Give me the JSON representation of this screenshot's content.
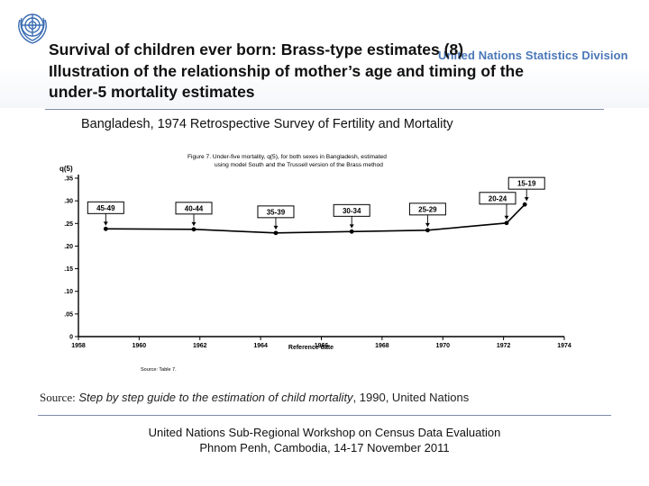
{
  "header": {
    "org": "United Nations Statistics Division",
    "title_lines": [
      "Survival of children ever born: Brass-type estimates (8)",
      "Illustration of the relationship of mother’s age and timing of the",
      "under-5 mortality estimates"
    ]
  },
  "subtitle": "Bangladesh, 1974 Retrospective Survey of Fertility and Mortality",
  "chart_data": {
    "type": "line",
    "figure_caption_lines": [
      "Figure 7.   Under-five mortality, q(5), for both sexes in Bangladesh, estimated",
      "using model South and the Trussell version of the Brass method"
    ],
    "ylabel": "q(5)",
    "xlabel": "Reference date",
    "xlim": [
      1958,
      1974
    ],
    "ylim": [
      0,
      0.35
    ],
    "x_ticks": [
      "1958",
      "1960",
      "1962",
      "1964",
      "1966",
      "1968",
      "1970",
      "1972",
      "1974"
    ],
    "y_ticks": [
      ".35",
      ".30",
      ".25",
      ".20",
      ".15",
      ".10",
      ".05",
      "0"
    ],
    "x": [
      1958.9,
      1961.8,
      1964.5,
      1967.0,
      1969.5,
      1972.1,
      1972.7
    ],
    "y": [
      0.238,
      0.237,
      0.229,
      0.232,
      0.235,
      0.251,
      0.292
    ],
    "point_labels": [
      "45-49",
      "40-44",
      "35-39",
      "30-34",
      "25-29",
      "20-24",
      "15-19"
    ],
    "source_note": "Source:   Table 7.",
    "grid": false,
    "line_color": "#000000"
  },
  "source": {
    "label": "Source:",
    "citation_italic": "Step by step guide to the estimation of child mortality",
    "citation_rest": ", 1990, United Nations"
  },
  "footer": {
    "line1": "United Nations Sub-Regional Workshop on Census Data Evaluation",
    "line2": "Phnom Penh, Cambodia, 14-17 November 2011"
  },
  "colors": {
    "division_text": "#4a77b8",
    "rule": "#7d8aa6"
  },
  "icons": {
    "logo": "un-emblem-icon"
  }
}
